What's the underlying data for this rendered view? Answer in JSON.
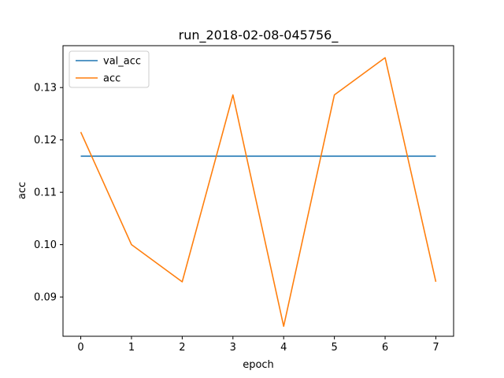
{
  "chart_data": {
    "type": "line",
    "title": "run_2018-02-08-045756_",
    "xlabel": "epoch",
    "ylabel": "acc",
    "x": [
      0,
      1,
      2,
      3,
      4,
      5,
      6,
      7
    ],
    "xticks": [
      "0",
      "1",
      "2",
      "3",
      "4",
      "5",
      "6",
      "7"
    ],
    "yticks": [
      "0.09",
      "0.10",
      "0.11",
      "0.12",
      "0.13"
    ],
    "xlim": [
      -0.35,
      7.35
    ],
    "ylim": [
      0.0825,
      0.138
    ],
    "grid": false,
    "legend_position": "upper-left",
    "series": [
      {
        "name": "val_acc",
        "color": "#1f77b4",
        "values": [
          0.1169,
          0.1169,
          0.1169,
          0.1169,
          0.1169,
          0.1169,
          0.1169,
          0.1169
        ]
      },
      {
        "name": "acc",
        "color": "#ff7f0e",
        "values": [
          0.1215,
          0.1,
          0.0929,
          0.1286,
          0.0844,
          0.1286,
          0.1357,
          0.0929
        ]
      }
    ]
  }
}
